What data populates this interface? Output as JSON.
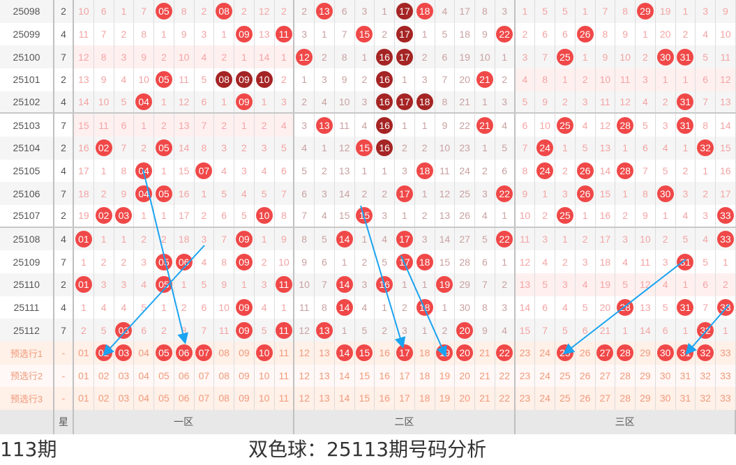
{
  "colors": {
    "ball": "#f04848",
    "ball_dark": "#a52424",
    "arrow": "#1aa3f0",
    "miss": "#f4a3a3",
    "miss_zone2": "#c9a0a0"
  },
  "rows": [
    {
      "period": "25098",
      "star": "2",
      "pink_zones": [],
      "dark": [
        "17"
      ],
      "cells": [
        10,
        6,
        1,
        7,
        "05",
        8,
        2,
        "08",
        2,
        12,
        2,
        2,
        "13",
        6,
        3,
        1,
        "17",
        "18",
        4,
        17,
        8,
        3,
        1,
        5,
        5,
        1,
        7,
        8,
        "29",
        19,
        1,
        3,
        9
      ]
    },
    {
      "period": "25099",
      "star": "4",
      "pink_zones": [],
      "dark": [
        "17"
      ],
      "cells": [
        11,
        7,
        2,
        8,
        1,
        9,
        3,
        1,
        "09",
        13,
        "11",
        3,
        1,
        7,
        "15",
        2,
        "17",
        1,
        5,
        18,
        9,
        "22",
        2,
        6,
        6,
        "26",
        8,
        9,
        1,
        20,
        2,
        4,
        10
      ]
    },
    {
      "period": "25100",
      "star": "7",
      "pink_zones": [
        1
      ],
      "dark": [
        "16",
        "17"
      ],
      "cells": [
        12,
        8,
        3,
        9,
        2,
        10,
        4,
        2,
        1,
        14,
        1,
        "12",
        2,
        8,
        1,
        "16",
        "17",
        2,
        6,
        19,
        10,
        1,
        3,
        7,
        "25",
        1,
        9,
        10,
        2,
        "30",
        "31",
        5,
        11
      ]
    },
    {
      "period": "25101",
      "star": "2",
      "pink_zones": [
        3
      ],
      "dark": [
        "08",
        "09",
        "10",
        "16"
      ],
      "cells": [
        13,
        9,
        4,
        10,
        "05",
        11,
        5,
        "08",
        "09",
        "10",
        2,
        1,
        3,
        9,
        2,
        "16",
        1,
        3,
        7,
        20,
        "21",
        2,
        4,
        8,
        1,
        2,
        10,
        11,
        3,
        1,
        1,
        6,
        12
      ]
    },
    {
      "period": "25102",
      "star": "4",
      "pink_zones": [],
      "dark": [
        "16",
        "17",
        "18"
      ],
      "cells": [
        14,
        10,
        5,
        "04",
        1,
        12,
        6,
        1,
        "09",
        1,
        3,
        2,
        4,
        10,
        3,
        "16",
        "17",
        "18",
        8,
        21,
        1,
        3,
        5,
        9,
        2,
        3,
        11,
        12,
        4,
        2,
        "31",
        7,
        13
      ]
    },
    {
      "period": "25103",
      "star": "7",
      "pink_zones": [
        1
      ],
      "dark": [
        "16"
      ],
      "cells": [
        15,
        11,
        6,
        1,
        2,
        13,
        7,
        2,
        1,
        2,
        4,
        3,
        "13",
        11,
        4,
        "16",
        1,
        1,
        9,
        22,
        "21",
        4,
        6,
        10,
        "25",
        4,
        12,
        "28",
        5,
        3,
        "31",
        8,
        14
      ]
    },
    {
      "period": "25104",
      "star": "2",
      "pink_zones": [],
      "dark": [
        "16"
      ],
      "cells": [
        16,
        "02",
        7,
        2,
        "05",
        14,
        8,
        3,
        2,
        3,
        5,
        4,
        1,
        12,
        "15",
        "16",
        2,
        2,
        10,
        23,
        1,
        5,
        7,
        "24",
        1,
        5,
        13,
        1,
        6,
        4,
        1,
        "32",
        15
      ]
    },
    {
      "period": "25105",
      "star": "4",
      "pink_zones": [],
      "dark": [],
      "cells": [
        17,
        1,
        8,
        "04",
        1,
        15,
        "07",
        4,
        3,
        4,
        6,
        5,
        2,
        13,
        1,
        1,
        3,
        "18",
        11,
        24,
        2,
        6,
        8,
        "24",
        2,
        "26",
        14,
        "28",
        7,
        5,
        2,
        1,
        16
      ]
    },
    {
      "period": "25106",
      "star": "7",
      "pink_zones": [],
      "dark": [],
      "cells": [
        18,
        2,
        9,
        "04",
        "05",
        16,
        1,
        5,
        4,
        5,
        7,
        6,
        3,
        14,
        2,
        2,
        "17",
        1,
        12,
        25,
        3,
        "22",
        9,
        1,
        3,
        "26",
        15,
        1,
        8,
        "30",
        3,
        2,
        17
      ]
    },
    {
      "period": "25107",
      "star": "2",
      "pink_zones": [],
      "dark": [],
      "cells": [
        19,
        "02",
        "03",
        1,
        1,
        17,
        2,
        6,
        5,
        "10",
        8,
        7,
        4,
        15,
        "15",
        3,
        1,
        2,
        13,
        26,
        4,
        1,
        10,
        2,
        "25",
        1,
        16,
        2,
        9,
        1,
        4,
        3,
        "33"
      ]
    },
    {
      "period": "25108",
      "star": "4",
      "pink_zones": [],
      "dark": [],
      "cells": [
        "01",
        1,
        1,
        2,
        2,
        18,
        3,
        7,
        "09",
        1,
        9,
        8,
        5,
        "14",
        1,
        4,
        "17",
        3,
        14,
        27,
        5,
        "22",
        11,
        3,
        1,
        2,
        17,
        3,
        10,
        2,
        5,
        4,
        "33"
      ]
    },
    {
      "period": "25109",
      "star": "7",
      "pink_zones": [],
      "dark": [],
      "cells": [
        1,
        2,
        2,
        3,
        "05",
        "06",
        4,
        8,
        "09",
        2,
        10,
        9,
        6,
        1,
        2,
        5,
        "17",
        "18",
        15,
        28,
        6,
        1,
        12,
        4,
        2,
        3,
        18,
        4,
        11,
        3,
        "31",
        5,
        1
      ]
    },
    {
      "period": "25110",
      "star": "2",
      "pink_zones": [
        3
      ],
      "dark": [],
      "cells": [
        "01",
        3,
        3,
        4,
        "05",
        1,
        5,
        9,
        1,
        3,
        "11",
        10,
        7,
        "14",
        3,
        "16",
        1,
        1,
        "19",
        29,
        7,
        2,
        13,
        5,
        3,
        4,
        19,
        5,
        12,
        4,
        1,
        6,
        2
      ]
    },
    {
      "period": "25111",
      "star": "4",
      "pink_zones": [],
      "dark": [],
      "cells": [
        1,
        4,
        4,
        5,
        1,
        2,
        6,
        10,
        "09",
        4,
        1,
        11,
        8,
        "14",
        4,
        1,
        2,
        "18",
        1,
        30,
        8,
        3,
        14,
        6,
        4,
        5,
        20,
        "28",
        13,
        5,
        "31",
        7,
        "33"
      ]
    },
    {
      "period": "25112",
      "star": "7",
      "pink_zones": [],
      "dark": [],
      "cells": [
        2,
        5,
        "03",
        6,
        2,
        8,
        7,
        11,
        "09",
        5,
        "11",
        12,
        "13",
        1,
        5,
        2,
        3,
        1,
        2,
        "20",
        9,
        4,
        15,
        7,
        5,
        6,
        21,
        1,
        14,
        6,
        1,
        "32",
        1
      ]
    }
  ],
  "preselect": [
    {
      "label": "预选行1",
      "star": "-",
      "selected": [
        "02",
        "03",
        "05",
        "06",
        "07",
        "10",
        "14",
        "15",
        "17",
        "19",
        "20",
        "22",
        "25",
        "27",
        "28",
        "30",
        "31",
        "32"
      ]
    },
    {
      "label": "预选行2",
      "star": "-",
      "selected": []
    },
    {
      "label": "预选行3",
      "star": "-",
      "selected": []
    }
  ],
  "numbers": [
    "01",
    "02",
    "03",
    "04",
    "05",
    "06",
    "07",
    "08",
    "09",
    "10",
    "11",
    "12",
    "13",
    "14",
    "15",
    "16",
    "17",
    "18",
    "19",
    "20",
    "21",
    "22",
    "23",
    "24",
    "25",
    "26",
    "27",
    "28",
    "29",
    "30",
    "31",
    "32",
    "33"
  ],
  "header": {
    "period": "",
    "star": "星",
    "zones": [
      "一区",
      "二区",
      "三区"
    ]
  },
  "overlay": {
    "issue_label": "113期",
    "title": "双色球：25113期号码分析"
  }
}
